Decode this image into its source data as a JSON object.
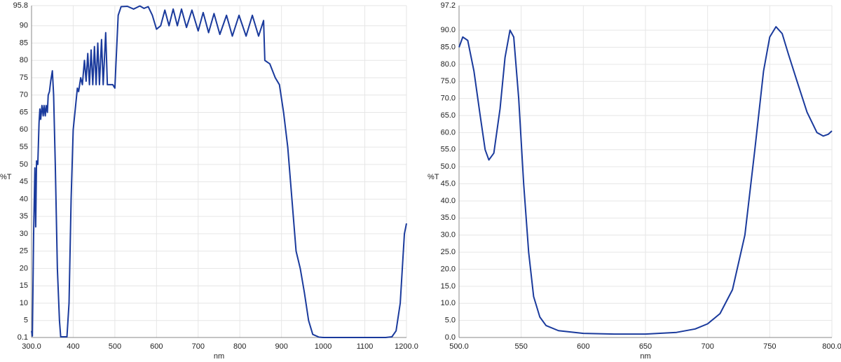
{
  "chart_data": [
    {
      "type": "line",
      "xlabel": "nm",
      "ylabel": "%T",
      "color": "#1a3a9c",
      "grid": true,
      "xlim": [
        300,
        1200
      ],
      "ylim": [
        0.1,
        95.8
      ],
      "xticks": [
        {
          "value": 300,
          "label": "300.0"
        },
        400,
        500,
        600,
        700,
        800,
        900,
        1000,
        1100,
        {
          "value": 1200,
          "label": "1200.0"
        }
      ],
      "yticks": [
        0.1,
        5,
        10,
        15,
        20,
        25,
        30,
        35,
        40,
        45,
        50,
        55,
        60,
        65,
        70,
        75,
        80,
        85,
        90,
        95.8
      ],
      "x": [
        300,
        302,
        305,
        308,
        310,
        312,
        315,
        318,
        320,
        322,
        325,
        328,
        330,
        333,
        335,
        338,
        340,
        343,
        346,
        350,
        353,
        357,
        362,
        367,
        370,
        385,
        390,
        395,
        400,
        405,
        410,
        413,
        418,
        422,
        427,
        431,
        435,
        439,
        443,
        447,
        451,
        455,
        459,
        463,
        468,
        472,
        478,
        482,
        488,
        495,
        500,
        503,
        508,
        515,
        530,
        545,
        560,
        570,
        580,
        590,
        600,
        610,
        620,
        630,
        640,
        650,
        660,
        672,
        685,
        700,
        712,
        725,
        738,
        752,
        768,
        782,
        798,
        815,
        830,
        845,
        857,
        860,
        872,
        885,
        895,
        905,
        915,
        925,
        935,
        945,
        955,
        965,
        975,
        990,
        1000,
        1150,
        1165,
        1175,
        1185,
        1195,
        1200
      ],
      "values": [
        2,
        0.5,
        30,
        49,
        32,
        51,
        50,
        62,
        66,
        63,
        67,
        64,
        67,
        64,
        67,
        65,
        70,
        71,
        74,
        77,
        70,
        50,
        20,
        5,
        0.3,
        0.3,
        10,
        40,
        60,
        66,
        72,
        71,
        75,
        73,
        80,
        74,
        82,
        73,
        83,
        73,
        84,
        73,
        85,
        73,
        86,
        73,
        88,
        73,
        73,
        73,
        72,
        80,
        93,
        95.5,
        95.6,
        94.8,
        95.7,
        95,
        95.5,
        93,
        89,
        90,
        94.5,
        90,
        94.8,
        90,
        94.8,
        89.5,
        94.5,
        88.5,
        93.8,
        88,
        93.5,
        87.5,
        93,
        87,
        93,
        87,
        93,
        87,
        91.5,
        80,
        79,
        75,
        73,
        65,
        55,
        40,
        25,
        20,
        13,
        5,
        1,
        0.2,
        0.1,
        0.1,
        0.3,
        2,
        10,
        30,
        33
      ]
    },
    {
      "type": "line",
      "xlabel": "nm",
      "ylabel": "%T",
      "color": "#1a3a9c",
      "grid": true,
      "xlim": [
        500,
        800
      ],
      "ylim": [
        0,
        97.2
      ],
      "xticks": [
        {
          "value": 500,
          "label": "500.0"
        },
        550,
        600,
        650,
        700,
        750,
        {
          "value": 800,
          "label": "800.0"
        }
      ],
      "yticks": [
        {
          "value": 0,
          "label": "0.0"
        },
        {
          "value": 5,
          "label": "5.0"
        },
        {
          "value": 10,
          "label": "10.0"
        },
        {
          "value": 15,
          "label": "15.0"
        },
        {
          "value": 20,
          "label": "20.0"
        },
        {
          "value": 25,
          "label": "25.0"
        },
        {
          "value": 30,
          "label": "30.0"
        },
        {
          "value": 35,
          "label": "35.0"
        },
        {
          "value": 40,
          "label": "40.0"
        },
        {
          "value": 45,
          "label": "45.0"
        },
        {
          "value": 50,
          "label": "50.0"
        },
        {
          "value": 55,
          "label": "55.0"
        },
        {
          "value": 60,
          "label": "60.0"
        },
        {
          "value": 65,
          "label": "65.0"
        },
        {
          "value": 70,
          "label": "70.0"
        },
        {
          "value": 75,
          "label": "75.0"
        },
        {
          "value": 80,
          "label": "80.0"
        },
        {
          "value": 85,
          "label": "85.0"
        },
        {
          "value": 90,
          "label": "90.0"
        },
        97.2
      ],
      "x": [
        500,
        503,
        507,
        512,
        517,
        521,
        524,
        528,
        533,
        537,
        541,
        544,
        548,
        552,
        556,
        560,
        565,
        570,
        580,
        600,
        625,
        650,
        675,
        690,
        700,
        710,
        720,
        730,
        738,
        745,
        750,
        755,
        760,
        765,
        772,
        780,
        788,
        793,
        797,
        800
      ],
      "values": [
        85,
        88,
        87,
        78,
        65,
        55,
        52,
        54,
        67,
        82,
        90,
        88,
        70,
        45,
        25,
        12,
        6,
        3.5,
        2,
        1.2,
        1,
        1,
        1.5,
        2.5,
        4,
        7,
        14,
        30,
        55,
        78,
        88,
        91,
        89,
        83,
        75,
        66,
        60,
        59,
        59.5,
        60.5
      ]
    }
  ]
}
